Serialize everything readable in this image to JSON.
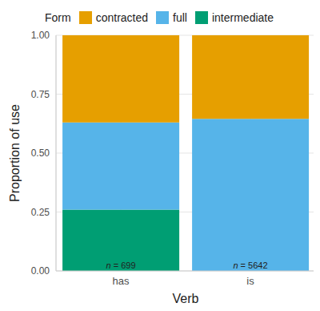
{
  "chart_data": {
    "type": "bar",
    "stacked": true,
    "legend_title": "Form",
    "x_label": "Verb",
    "y_label": "Proportion of use",
    "categories": [
      "has",
      "is"
    ],
    "series": [
      {
        "name": "contracted",
        "color": "#E69F00",
        "values": [
          0.37,
          0.355
        ]
      },
      {
        "name": "full",
        "color": "#56B4E9",
        "values": [
          0.37,
          0.645
        ]
      },
      {
        "name": "intermediate",
        "color": "#009E73",
        "values": [
          0.26,
          0
        ]
      }
    ],
    "annotations": [
      "n = 699",
      "n = 5642"
    ],
    "ylim": [
      0,
      1
    ],
    "yticks": [
      {
        "value": 0,
        "label": "0.00"
      },
      {
        "value": 0.25,
        "label": "0.25"
      },
      {
        "value": 0.5,
        "label": "0.50"
      },
      {
        "value": 0.75,
        "label": "0.75"
      },
      {
        "value": 1,
        "label": "1.00"
      }
    ],
    "grid": true,
    "legend": "top"
  }
}
